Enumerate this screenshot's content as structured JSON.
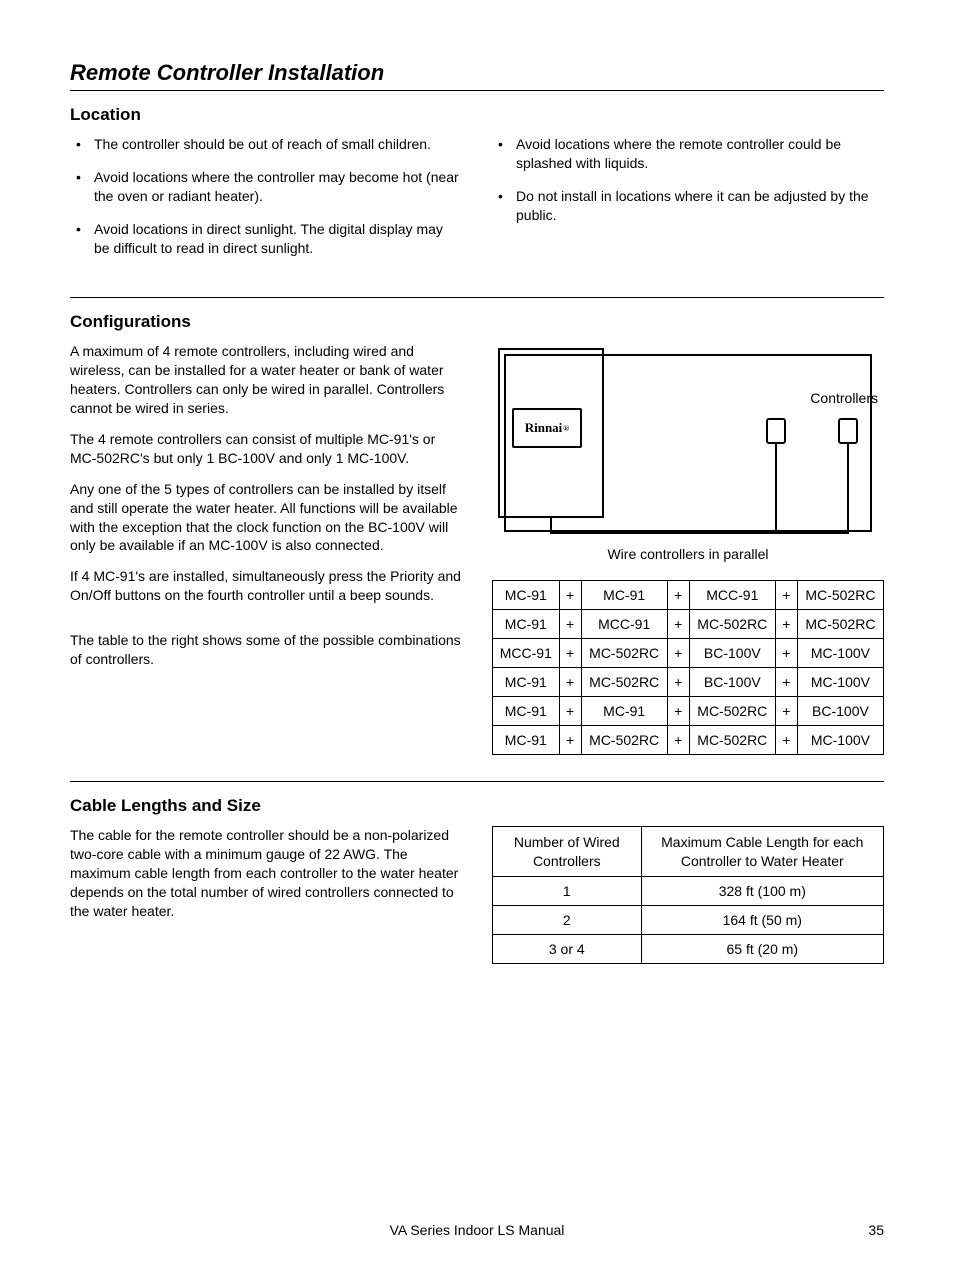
{
  "page_title": "Remote Controller Installation",
  "sections": {
    "location": {
      "heading": "Location",
      "left_bullets": [
        "The controller should be out of reach of small children.",
        "Avoid locations where the controller may become hot (near the oven or radiant heater).",
        "Avoid locations in direct sunlight.  The digital display may be difficult to read in direct sunlight."
      ],
      "right_bullets": [
        "Avoid locations where the remote controller could be splashed with liquids.",
        "Do not install in locations where it can be adjusted by the public."
      ]
    },
    "configurations": {
      "heading": "Configurations",
      "paragraphs": [
        "A maximum of 4 remote controllers, including wired and wireless, can be installed for a water heater or bank of water heaters.  Controllers can only be wired in parallel.  Controllers cannot be wired in series.",
        "The 4 remote controllers can consist of multiple MC-91's or MC-502RC's but only 1 BC-100V and only  1 MC-100V.",
        "Any one of the 5 types of controllers can be installed by itself and still operate the water heater.  All functions will be available with the exception that the clock function on the BC-100V will only be available if an MC-100V is also connected.",
        "If 4 MC-91's are installed, simultaneously press the Priority and On/Off buttons on the fourth controller until a beep sounds.",
        "The table to the right shows some of the possible combinations of controllers."
      ],
      "diagram": {
        "brand": "Rinnai",
        "controllers_label": "Controllers",
        "caption": "Wire controllers in parallel"
      },
      "combo_table": {
        "plus": "+",
        "rows": [
          [
            "MC-91",
            "MC-91",
            "MCC-91",
            "MC-502RC"
          ],
          [
            "MC-91",
            "MCC-91",
            "MC-502RC",
            "MC-502RC"
          ],
          [
            "MCC-91",
            "MC-502RC",
            "BC-100V",
            "MC-100V"
          ],
          [
            "MC-91",
            "MC-502RC",
            "BC-100V",
            "MC-100V"
          ],
          [
            "MC-91",
            "MC-91",
            "MC-502RC",
            "BC-100V"
          ],
          [
            "MC-91",
            "MC-502RC",
            "MC-502RC",
            "MC-100V"
          ]
        ]
      }
    },
    "cable": {
      "heading": "Cable Lengths and Size",
      "paragraph": "The cable for the remote controller should be a non-polarized two-core cable with a minimum gauge of 22 AWG.  The maximum cable length from each controller to the water heater depends on the total number of wired controllers connected to the water heater.",
      "table": {
        "headers": [
          "Number of Wired Controllers",
          "Maximum Cable Length for each Controller to Water Heater"
        ],
        "rows": [
          [
            "1",
            "328 ft (100 m)"
          ],
          [
            "2",
            "164 ft (50 m)"
          ],
          [
            "3 or 4",
            "65 ft (20 m)"
          ]
        ]
      }
    }
  },
  "footer": {
    "manual": "VA Series Indoor LS Manual",
    "page": "35"
  }
}
